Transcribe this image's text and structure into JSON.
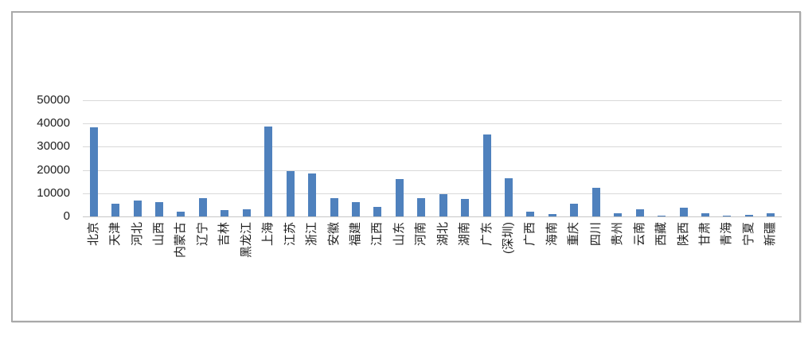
{
  "chart_data": {
    "type": "bar",
    "title": "",
    "xlabel": "",
    "ylabel": "",
    "legend": "none",
    "grid": "horizontal",
    "ylim": [
      0,
      50000
    ],
    "yticks": [
      0,
      10000,
      20000,
      30000,
      40000,
      50000
    ],
    "categories": [
      "北京",
      "天津",
      "河北",
      "山西",
      "内蒙古",
      "辽宁",
      "吉林",
      "黑龙江",
      "上海",
      "江苏",
      "浙江",
      "安徽",
      "福建",
      "江西",
      "山东",
      "河南",
      "湖北",
      "湖南",
      "广东",
      "(深圳)",
      "广西",
      "海南",
      "重庆",
      "四川",
      "贵州",
      "云南",
      "西藏",
      "陕西",
      "甘肃",
      "青海",
      "宁夏",
      "新疆"
    ],
    "values": [
      38500,
      5600,
      6900,
      6100,
      2100,
      7800,
      2650,
      3250,
      38600,
      19400,
      18600,
      8000,
      6200,
      4000,
      16100,
      7900,
      9500,
      7500,
      35400,
      16400,
      2100,
      1200,
      5400,
      12300,
      1500,
      3200,
      300,
      3750,
      1350,
      250,
      700,
      1250
    ],
    "x_label_rotation_deg": -90,
    "colors": {
      "bar": "#4F81BD",
      "gridline": "#D9D9D9",
      "axis_line": "#C6C6C6",
      "text": "#1F1F1F",
      "frame_border": "#A9A9A9",
      "background": "#FFFFFF"
    }
  }
}
